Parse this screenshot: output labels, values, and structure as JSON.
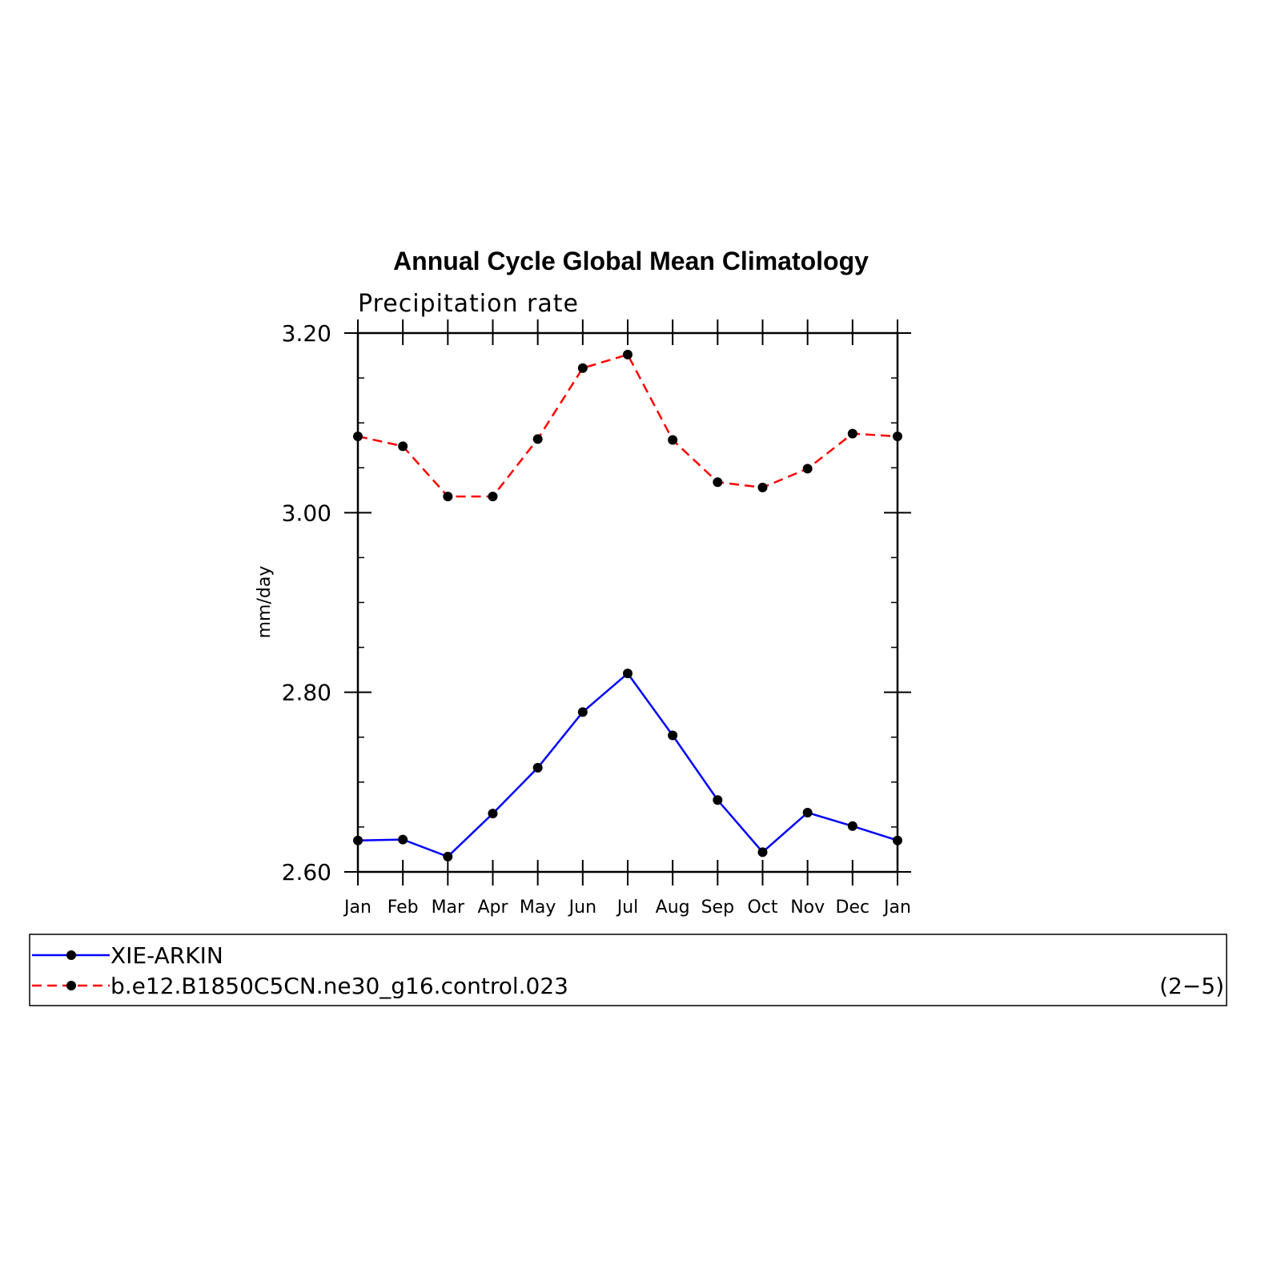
{
  "chart_data": {
    "type": "line",
    "title": "Annual Cycle Global Mean Climatology",
    "subtitle": "Precipitation rate",
    "ylabel": "mm/day",
    "xlabel": "",
    "categories": [
      "Jan",
      "Feb",
      "Mar",
      "Apr",
      "May",
      "Jun",
      "Jul",
      "Aug",
      "Sep",
      "Oct",
      "Nov",
      "Dec",
      "Jan"
    ],
    "ylim": [
      2.6,
      3.2
    ],
    "yticks": [
      2.6,
      2.8,
      3.0,
      3.2
    ],
    "ytick_labels": [
      "2.60",
      "2.80",
      "3.00",
      "3.20"
    ],
    "y_minor_step": 0.05,
    "grid": false,
    "legend_placement": "bottom",
    "series": [
      {
        "name": "XIE-ARKIN",
        "color": "#0000ff",
        "dashed": false,
        "values": [
          2.635,
          2.636,
          2.617,
          2.665,
          2.716,
          2.778,
          2.821,
          2.752,
          2.68,
          2.622,
          2.666,
          2.651,
          2.635
        ]
      },
      {
        "name": "b.e12.B1850C5CN.ne30_g16.control.023",
        "color": "#ff0000",
        "dashed": true,
        "values": [
          3.085,
          3.074,
          3.018,
          3.018,
          3.082,
          3.161,
          3.176,
          3.081,
          3.034,
          3.028,
          3.049,
          3.088,
          3.085
        ]
      }
    ],
    "panel_tag": "(2−5)"
  }
}
